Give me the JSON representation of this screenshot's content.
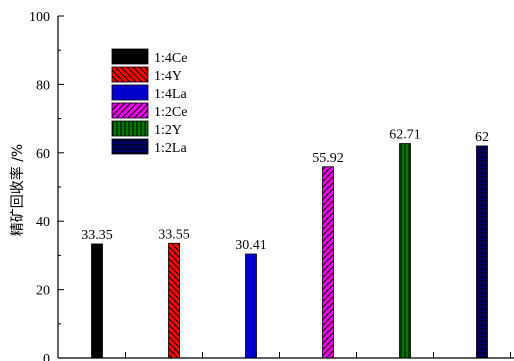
{
  "chart_data": {
    "type": "bar",
    "ylabel": "精矿回收率 /%",
    "ylim": [
      0,
      100
    ],
    "yticks": [
      0,
      20,
      40,
      60,
      80,
      100
    ],
    "legend_position": "top-left",
    "grid": false,
    "series": [
      {
        "name": "1:4Ce",
        "value": 33.35,
        "label": "33.35",
        "color": "#000000",
        "pattern": "solid"
      },
      {
        "name": "1:4Y",
        "value": 33.55,
        "label": "33.55",
        "color": "#ff0000",
        "pattern": "diag-back"
      },
      {
        "name": "1:4La",
        "value": 30.41,
        "label": "30.41",
        "color": "#0000cc",
        "pattern": "solid"
      },
      {
        "name": "1:2Ce",
        "value": 55.92,
        "label": "55.92",
        "color": "#ee00ee",
        "pattern": "diag-fwd"
      },
      {
        "name": "1:2Y",
        "value": 62.71,
        "label": "62.71",
        "color": "#007700",
        "pattern": "vertical"
      },
      {
        "name": "1:2La",
        "value": 62,
        "label": "62",
        "color": "#000066",
        "pattern": "horizontal"
      }
    ]
  }
}
